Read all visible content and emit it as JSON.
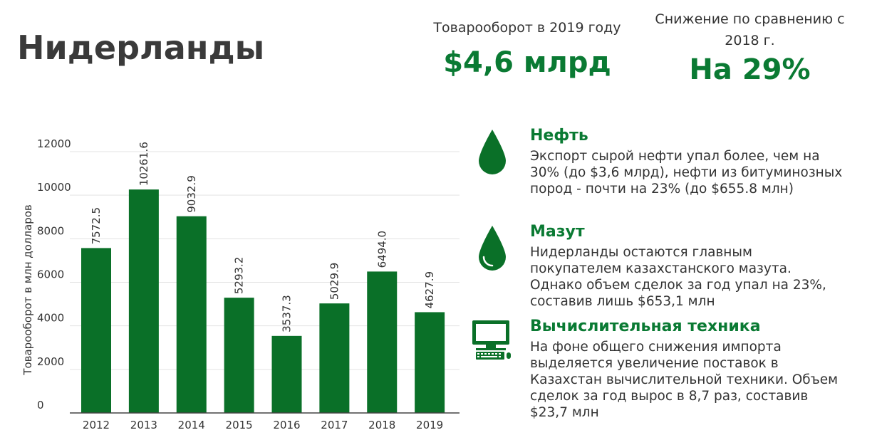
{
  "page": {
    "title": "Нидерланды"
  },
  "stats": {
    "turnover": {
      "label": "Товарооборот в 2019 году",
      "value": "$4,6 млрд"
    },
    "decrease": {
      "label": "Снижение по сравнению с 2018 г.",
      "value": "На 29%"
    }
  },
  "chart_data": {
    "type": "bar",
    "title": "",
    "xlabel": "",
    "ylabel": "Товарооборот в млн долларов",
    "categories": [
      "2012",
      "2013",
      "2014",
      "2015",
      "2016",
      "2017",
      "2018",
      "2019"
    ],
    "values": [
      7572.5,
      10261.6,
      9032.9,
      5293.2,
      3537.3,
      5029.9,
      6494.0,
      4627.9
    ],
    "value_labels": [
      "7572.5",
      "10261.6",
      "9032.9",
      "5293.2",
      "3537.3",
      "5029.9",
      "6494.0",
      "4627.9"
    ],
    "ylim": [
      0,
      12000
    ],
    "yticks": [
      0,
      2000,
      4000,
      6000,
      8000,
      10000,
      12000
    ],
    "grid": true,
    "bar_color": "#0a7028"
  },
  "info": [
    {
      "icon": "oil-drop-icon",
      "heading": "Нефть",
      "text": "Экспорт сырой нефти упал более, чем на 30% (до $3,6 млрд), нефти из битуминозных пород - почти на 23% (до $655.8 млн)"
    },
    {
      "icon": "fuel-oil-drop-icon",
      "heading": "Мазут",
      "text": "Нидерланды остаются главным покупателем казахстанского мазута. Однако объем сделок за год упал на 23%, составив лишь $653,1 млн"
    },
    {
      "icon": "computer-icon",
      "heading": "Вычислительная техника",
      "text": "На фоне общего снижения импорта выделяется увеличение поставок в Казахстан вычислительной техники. Объем сделок за год вырос в 8,7 раз, составив $23,7 млн"
    }
  ],
  "colors": {
    "accent": "#0a7a33",
    "title": "#3a3a3a"
  }
}
